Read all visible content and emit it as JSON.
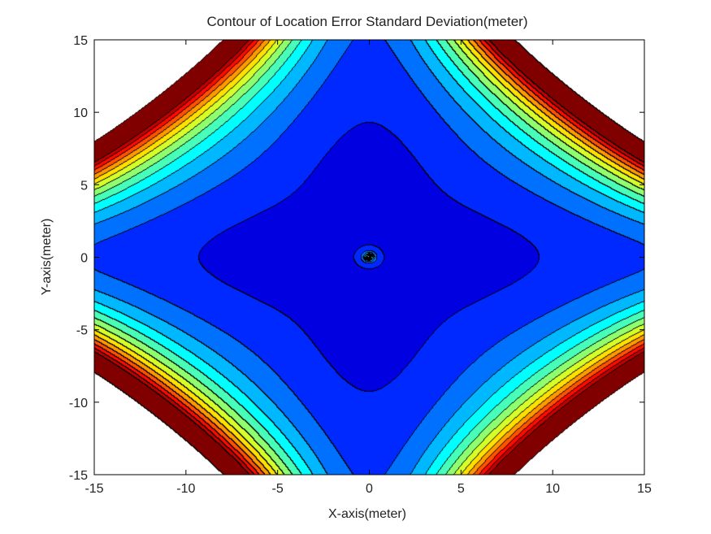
{
  "chart_data": {
    "type": "contour",
    "title": "Contour of Location Error Standard Deviation(meter)",
    "xlabel": "X-axis(meter)",
    "ylabel": "Y-axis(meter)",
    "xlim": [
      -15,
      15
    ],
    "ylim": [
      -15,
      15
    ],
    "xticks": [
      -15,
      -10,
      -5,
      0,
      5,
      10,
      15
    ],
    "yticks": [
      -15,
      -10,
      -5,
      0,
      5,
      10,
      15
    ],
    "colormap": "jet",
    "contour_levels": 14,
    "line_color": "#000000",
    "features": [
      {
        "description": "Maximum",
        "x": 13.8,
        "y": 13.8
      },
      {
        "description": "Maximum",
        "x": -13.8,
        "y": 13.8
      },
      {
        "description": "Maximum",
        "x": 13.8,
        "y": -13.8
      },
      {
        "description": "Maximum",
        "x": -13.8,
        "y": -13.8
      },
      {
        "description": "Minimum lobe",
        "x": 0,
        "y": 8
      },
      {
        "description": "Minimum lobe",
        "x": 0,
        "y": -8
      },
      {
        "description": "Minimum lobe",
        "x": 8,
        "y": 0
      },
      {
        "description": "Minimum lobe",
        "x": -8,
        "y": 0
      },
      {
        "description": "Singular point",
        "x": 0,
        "y": 0
      }
    ]
  }
}
